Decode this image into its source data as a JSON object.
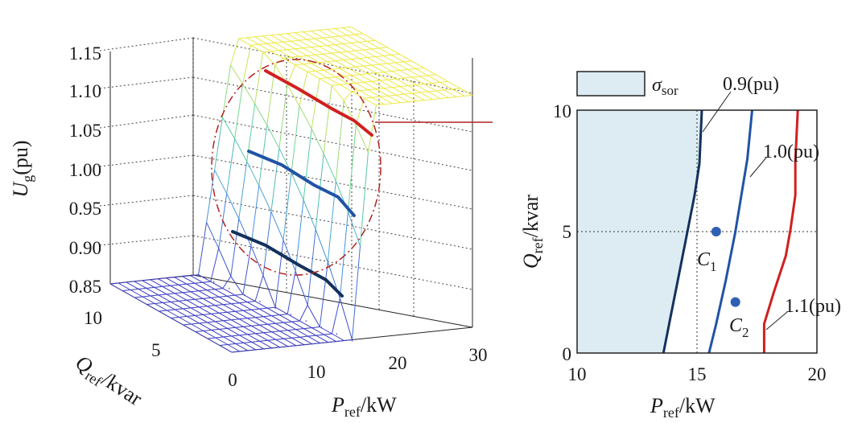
{
  "chart_data": [
    {
      "type": "surface3d",
      "zlabel": {
        "main": "U",
        "sub": "g",
        "unit": "(pu)"
      },
      "xlabel": {
        "main": "P",
        "sub": "ref",
        "unit": "/kW"
      },
      "ylabel": {
        "main": "Q",
        "sub": "ref",
        "unit": "/kvar"
      },
      "xlim": [
        0,
        30
      ],
      "ylim": [
        0,
        10
      ],
      "zlim": [
        0.85,
        1.15
      ],
      "x_ticks": [
        "0",
        "10",
        "20",
        "30"
      ],
      "y_ticks": [
        "5",
        "10"
      ],
      "z_ticks": [
        "0.85",
        "0.90",
        "0.95",
        "1.00",
        "1.05",
        "1.10",
        "1.15"
      ],
      "z_low": 0.85,
      "z_high": 1.15,
      "transition_p": [
        15,
        17.5
      ],
      "highlight_contours": [
        {
          "level": 0.9,
          "color": "#13315c"
        },
        {
          "level": 1.0,
          "color": "#2153a6"
        },
        {
          "level": 1.1,
          "color": "#d11f1f"
        }
      ]
    },
    {
      "type": "contour",
      "xlabel": {
        "main": "P",
        "sub": "ref",
        "unit": "/kW"
      },
      "ylabel": {
        "main": "Q",
        "sub": "ref",
        "unit": "/kvar"
      },
      "xlim": [
        10,
        20
      ],
      "ylim": [
        0,
        10
      ],
      "x_ticks": [
        "10",
        "15",
        "20"
      ],
      "y_ticks": [
        "0",
        "5",
        "10"
      ],
      "legend": {
        "label": "σ",
        "sub": "sor",
        "color": "#dcecf2"
      },
      "lines": [
        {
          "label": "0.9(pu)",
          "color": "#13315c",
          "points": [
            [
              13.6,
              0
            ],
            [
              13.9,
              1.5
            ],
            [
              14.2,
              3
            ],
            [
              14.6,
              5
            ],
            [
              14.9,
              6.5
            ],
            [
              15.1,
              7.8
            ],
            [
              15.2,
              10
            ]
          ]
        },
        {
          "label": "1.0(pu)",
          "color": "#2153a6",
          "points": [
            [
              15.5,
              0
            ],
            [
              15.8,
              1.2
            ],
            [
              16.2,
              3
            ],
            [
              16.6,
              5
            ],
            [
              16.9,
              6.8
            ],
            [
              17.1,
              8
            ],
            [
              17.3,
              10
            ]
          ]
        },
        {
          "label": "1.1(pu)",
          "color": "#d11f1f",
          "points": [
            [
              17.8,
              0
            ],
            [
              17.8,
              1.2
            ],
            [
              18.2,
              2.5
            ],
            [
              18.7,
              4
            ],
            [
              18.9,
              5.1
            ],
            [
              19.1,
              6.5
            ],
            [
              19.1,
              7.9
            ],
            [
              19.2,
              10
            ]
          ]
        }
      ],
      "points": [
        {
          "label": "C",
          "sub": "1",
          "x": 15.8,
          "y": 5.0
        },
        {
          "label": "C",
          "sub": "2",
          "x": 16.6,
          "y": 2.1
        }
      ],
      "grid_x": 15,
      "grid_y": 5
    }
  ]
}
